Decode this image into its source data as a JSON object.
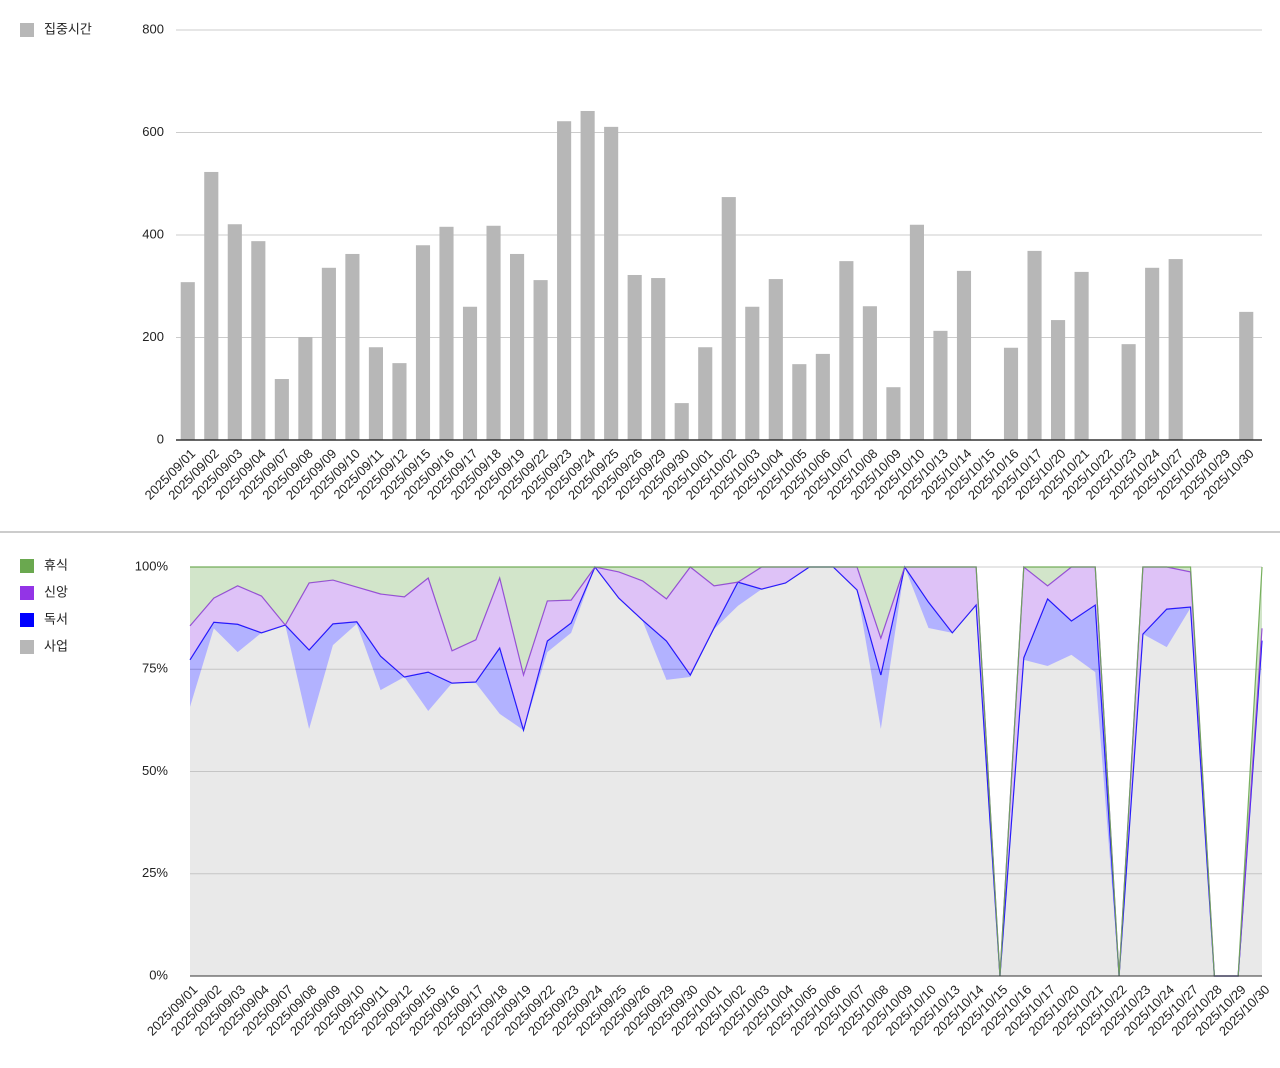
{
  "chart_data": [
    {
      "type": "bar",
      "categories": [
        "2025/09/01",
        "2025/09/02",
        "2025/09/03",
        "2025/09/04",
        "2025/09/07",
        "2025/09/08",
        "2025/09/09",
        "2025/09/10",
        "2025/09/11",
        "2025/09/12",
        "2025/09/15",
        "2025/09/16",
        "2025/09/17",
        "2025/09/18",
        "2025/09/19",
        "2025/09/22",
        "2025/09/23",
        "2025/09/24",
        "2025/09/25",
        "2025/09/26",
        "2025/09/29",
        "2025/09/30",
        "2025/10/01",
        "2025/10/02",
        "2025/10/03",
        "2025/10/04",
        "2025/10/05",
        "2025/10/06",
        "2025/10/07",
        "2025/10/08",
        "2025/10/09",
        "2025/10/10",
        "2025/10/13",
        "2025/10/14",
        "2025/10/15",
        "2025/10/16",
        "2025/10/17",
        "2025/10/20",
        "2025/10/21",
        "2025/10/22",
        "2025/10/23",
        "2025/10/24",
        "2025/10/27",
        "2025/10/28",
        "2025/10/29",
        "2025/10/30"
      ],
      "series": [
        {
          "name": "집중시간",
          "color": "#b7b7b7",
          "values": [
            308,
            523,
            421,
            388,
            119,
            201,
            336,
            363,
            181,
            150,
            380,
            416,
            260,
            418,
            363,
            312,
            622,
            642,
            611,
            322,
            316,
            72,
            181,
            474,
            260,
            314,
            148,
            168,
            349,
            261,
            103,
            420,
            213,
            330,
            0,
            180,
            369,
            234,
            328,
            0,
            187,
            336,
            353,
            0,
            0,
            250
          ]
        }
      ],
      "ylim": [
        0,
        800
      ],
      "yticks": [
        0,
        200,
        400,
        600,
        800
      ],
      "grid": true
    },
    {
      "type": "area",
      "stacked": true,
      "categories": [
        "2025/09/01",
        "2025/09/02",
        "2025/09/03",
        "2025/09/04",
        "2025/09/07",
        "2025/09/08",
        "2025/09/09",
        "2025/09/10",
        "2025/09/11",
        "2025/09/12",
        "2025/09/15",
        "2025/09/16",
        "2025/09/17",
        "2025/09/18",
        "2025/09/19",
        "2025/09/22",
        "2025/09/23",
        "2025/09/24",
        "2025/09/25",
        "2025/09/26",
        "2025/09/29",
        "2025/09/30",
        "2025/10/01",
        "2025/10/02",
        "2025/10/03",
        "2025/10/04",
        "2025/10/05",
        "2025/10/06",
        "2025/10/07",
        "2025/10/08",
        "2025/10/09",
        "2025/10/10",
        "2025/10/13",
        "2025/10/14",
        "2025/10/15",
        "2025/10/16",
        "2025/10/17",
        "2025/10/20",
        "2025/10/21",
        "2025/10/22",
        "2025/10/23",
        "2025/10/24",
        "2025/10/27",
        "2025/10/28",
        "2025/10/29",
        "2025/10/30"
      ],
      "series": [
        {
          "name": "휴식",
          "color": "#6aa84f",
          "values": [
            14.4,
            7.6,
            4.6,
            7.1,
            14.2,
            3.9,
            3.2,
            4.9,
            6.6,
            7.3,
            2.7,
            20.5,
            17.8,
            2.7,
            26.4,
            8.3,
            8.1,
            0,
            1.2,
            3.4,
            7.8,
            0,
            4.6,
            3.7,
            0,
            0,
            0,
            0,
            0,
            17.4,
            0,
            0,
            0,
            0,
            0,
            0,
            4.6,
            0,
            0,
            0,
            0,
            0,
            1.2,
            0,
            0,
            15
          ]
        },
        {
          "name": "신앙",
          "color": "#9334e6",
          "values": [
            8.3,
            5.9,
            9.4,
            9,
            0,
            16.4,
            10.7,
            8.5,
            15.2,
            19.6,
            23,
            7.9,
            10.3,
            17.1,
            13.5,
            9.8,
            5.6,
            0,
            6.4,
            9.6,
            10.3,
            26.4,
            10.3,
            0,
            5.4,
            3.9,
            0,
            0,
            5.6,
            9,
            0,
            8.6,
            16.1,
            9.3,
            0,
            22.2,
            3.2,
            13.2,
            9.3,
            0,
            16.4,
            10.3,
            8.6,
            0,
            0,
            3
          ]
        },
        {
          "name": "독서",
          "color": "#0000ff",
          "values": [
            11.5,
            1.5,
            6.8,
            0,
            0,
            19.3,
            5.2,
            0.5,
            8.3,
            0,
            9.5,
            0,
            0.3,
            16.1,
            0,
            2.7,
            2.4,
            0,
            0,
            0.2,
            9.5,
            0.5,
            0.3,
            5.8,
            0,
            0,
            0,
            0,
            0,
            13.2,
            0,
            6.3,
            0,
            0,
            0,
            0.5,
            16.4,
            8.3,
            16.4,
            0,
            0,
            9.3,
            0.2,
            0,
            0,
            2
          ]
        },
        {
          "name": "사업",
          "color": "#b7b7b7",
          "values": [
            65.8,
            85,
            79.2,
            83.9,
            85.8,
            60.4,
            80.9,
            86.1,
            69.9,
            73.1,
            64.8,
            71.6,
            71.6,
            64.1,
            60.1,
            79.2,
            83.9,
            100,
            92.4,
            86.8,
            72.4,
            73.1,
            84.8,
            90.5,
            94.6,
            96.1,
            100,
            100,
            94.4,
            60.4,
            100,
            85.1,
            83.9,
            90.7,
            0,
            77.3,
            75.8,
            78.5,
            74.3,
            0,
            83.6,
            80.4,
            90,
            0,
            0,
            80
          ]
        }
      ],
      "ylim": [
        0,
        100
      ],
      "yticks": [
        {
          "value": 0,
          "label": "0%"
        },
        {
          "value": 25,
          "label": "25%"
        },
        {
          "value": 50,
          "label": "50%"
        },
        {
          "value": 75,
          "label": "75%"
        },
        {
          "value": 100,
          "label": "100%"
        }
      ],
      "grid": true
    }
  ]
}
